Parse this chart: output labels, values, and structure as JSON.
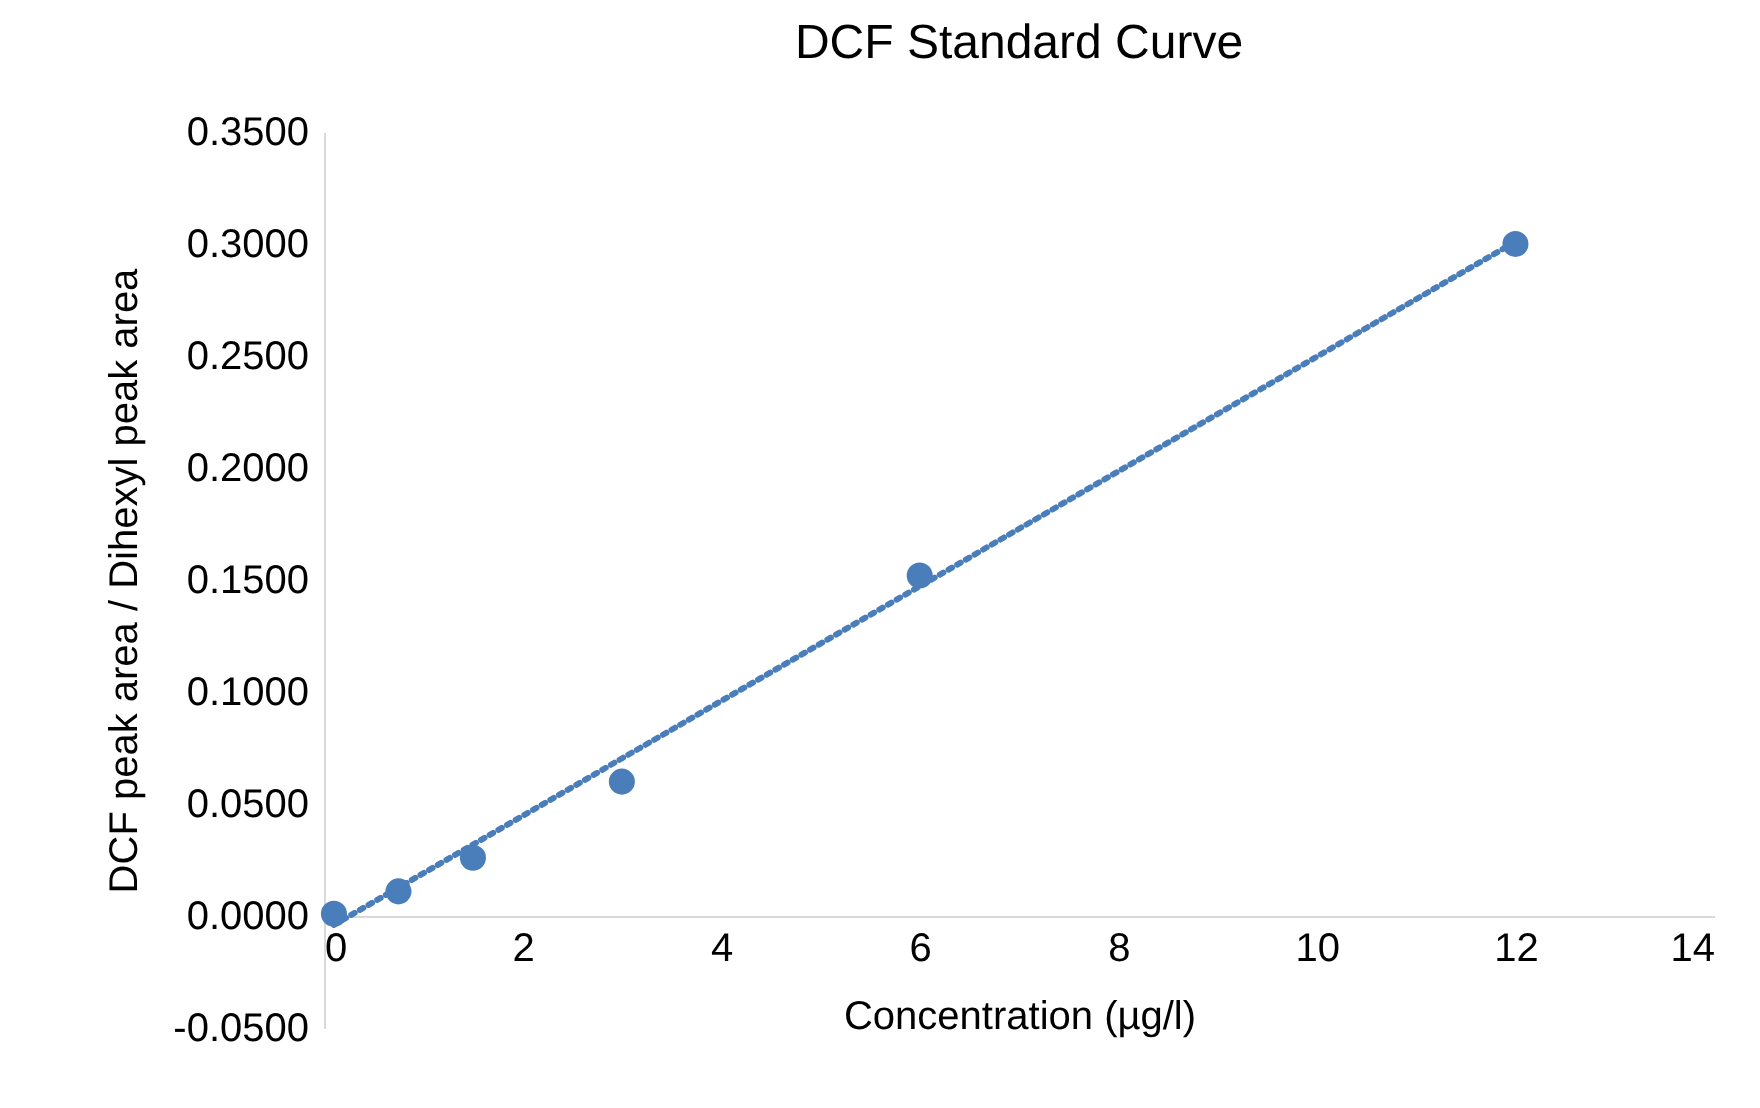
{
  "chart_data": {
    "type": "scatter",
    "title": "DCF Standard Curve",
    "xlabel": "Concentration (µg/l)",
    "ylabel": "DCF peak area / Dihexyl peak area",
    "xlim": [
      0,
      14
    ],
    "xticks": [
      0,
      2,
      4,
      6,
      8,
      10,
      12,
      14
    ],
    "ylim": [
      -0.05,
      0.35
    ],
    "yticks": [
      {
        "value": -0.05,
        "label": "-0.0500"
      },
      {
        "value": 0,
        "label": "0.0000"
      },
      {
        "value": 0.05,
        "label": "0.0500"
      },
      {
        "value": 0.1,
        "label": "0.1000"
      },
      {
        "value": 0.15,
        "label": "0.1500"
      },
      {
        "value": 0.2,
        "label": "0.2000"
      },
      {
        "value": 0.25,
        "label": "0.2500"
      },
      {
        "value": 0.3,
        "label": "0.3000"
      },
      {
        "value": 0.35,
        "label": "0.3500"
      }
    ],
    "grid": false,
    "legend": false,
    "series": [
      {
        "type": "scatter",
        "color": "#4a7ebb",
        "marker": "circle",
        "x": [
          0.1,
          0.75,
          1.5,
          3,
          6,
          12
        ],
        "values": [
          0.001,
          0.011,
          0.026,
          0.06,
          0.152,
          0.3
        ]
      },
      {
        "type": "line",
        "color": "#4a7ebb",
        "marker": "none",
        "line_style": "dotted",
        "x": [
          0.1,
          12
        ],
        "values": [
          -0.004,
          0.301
        ]
      }
    ]
  }
}
